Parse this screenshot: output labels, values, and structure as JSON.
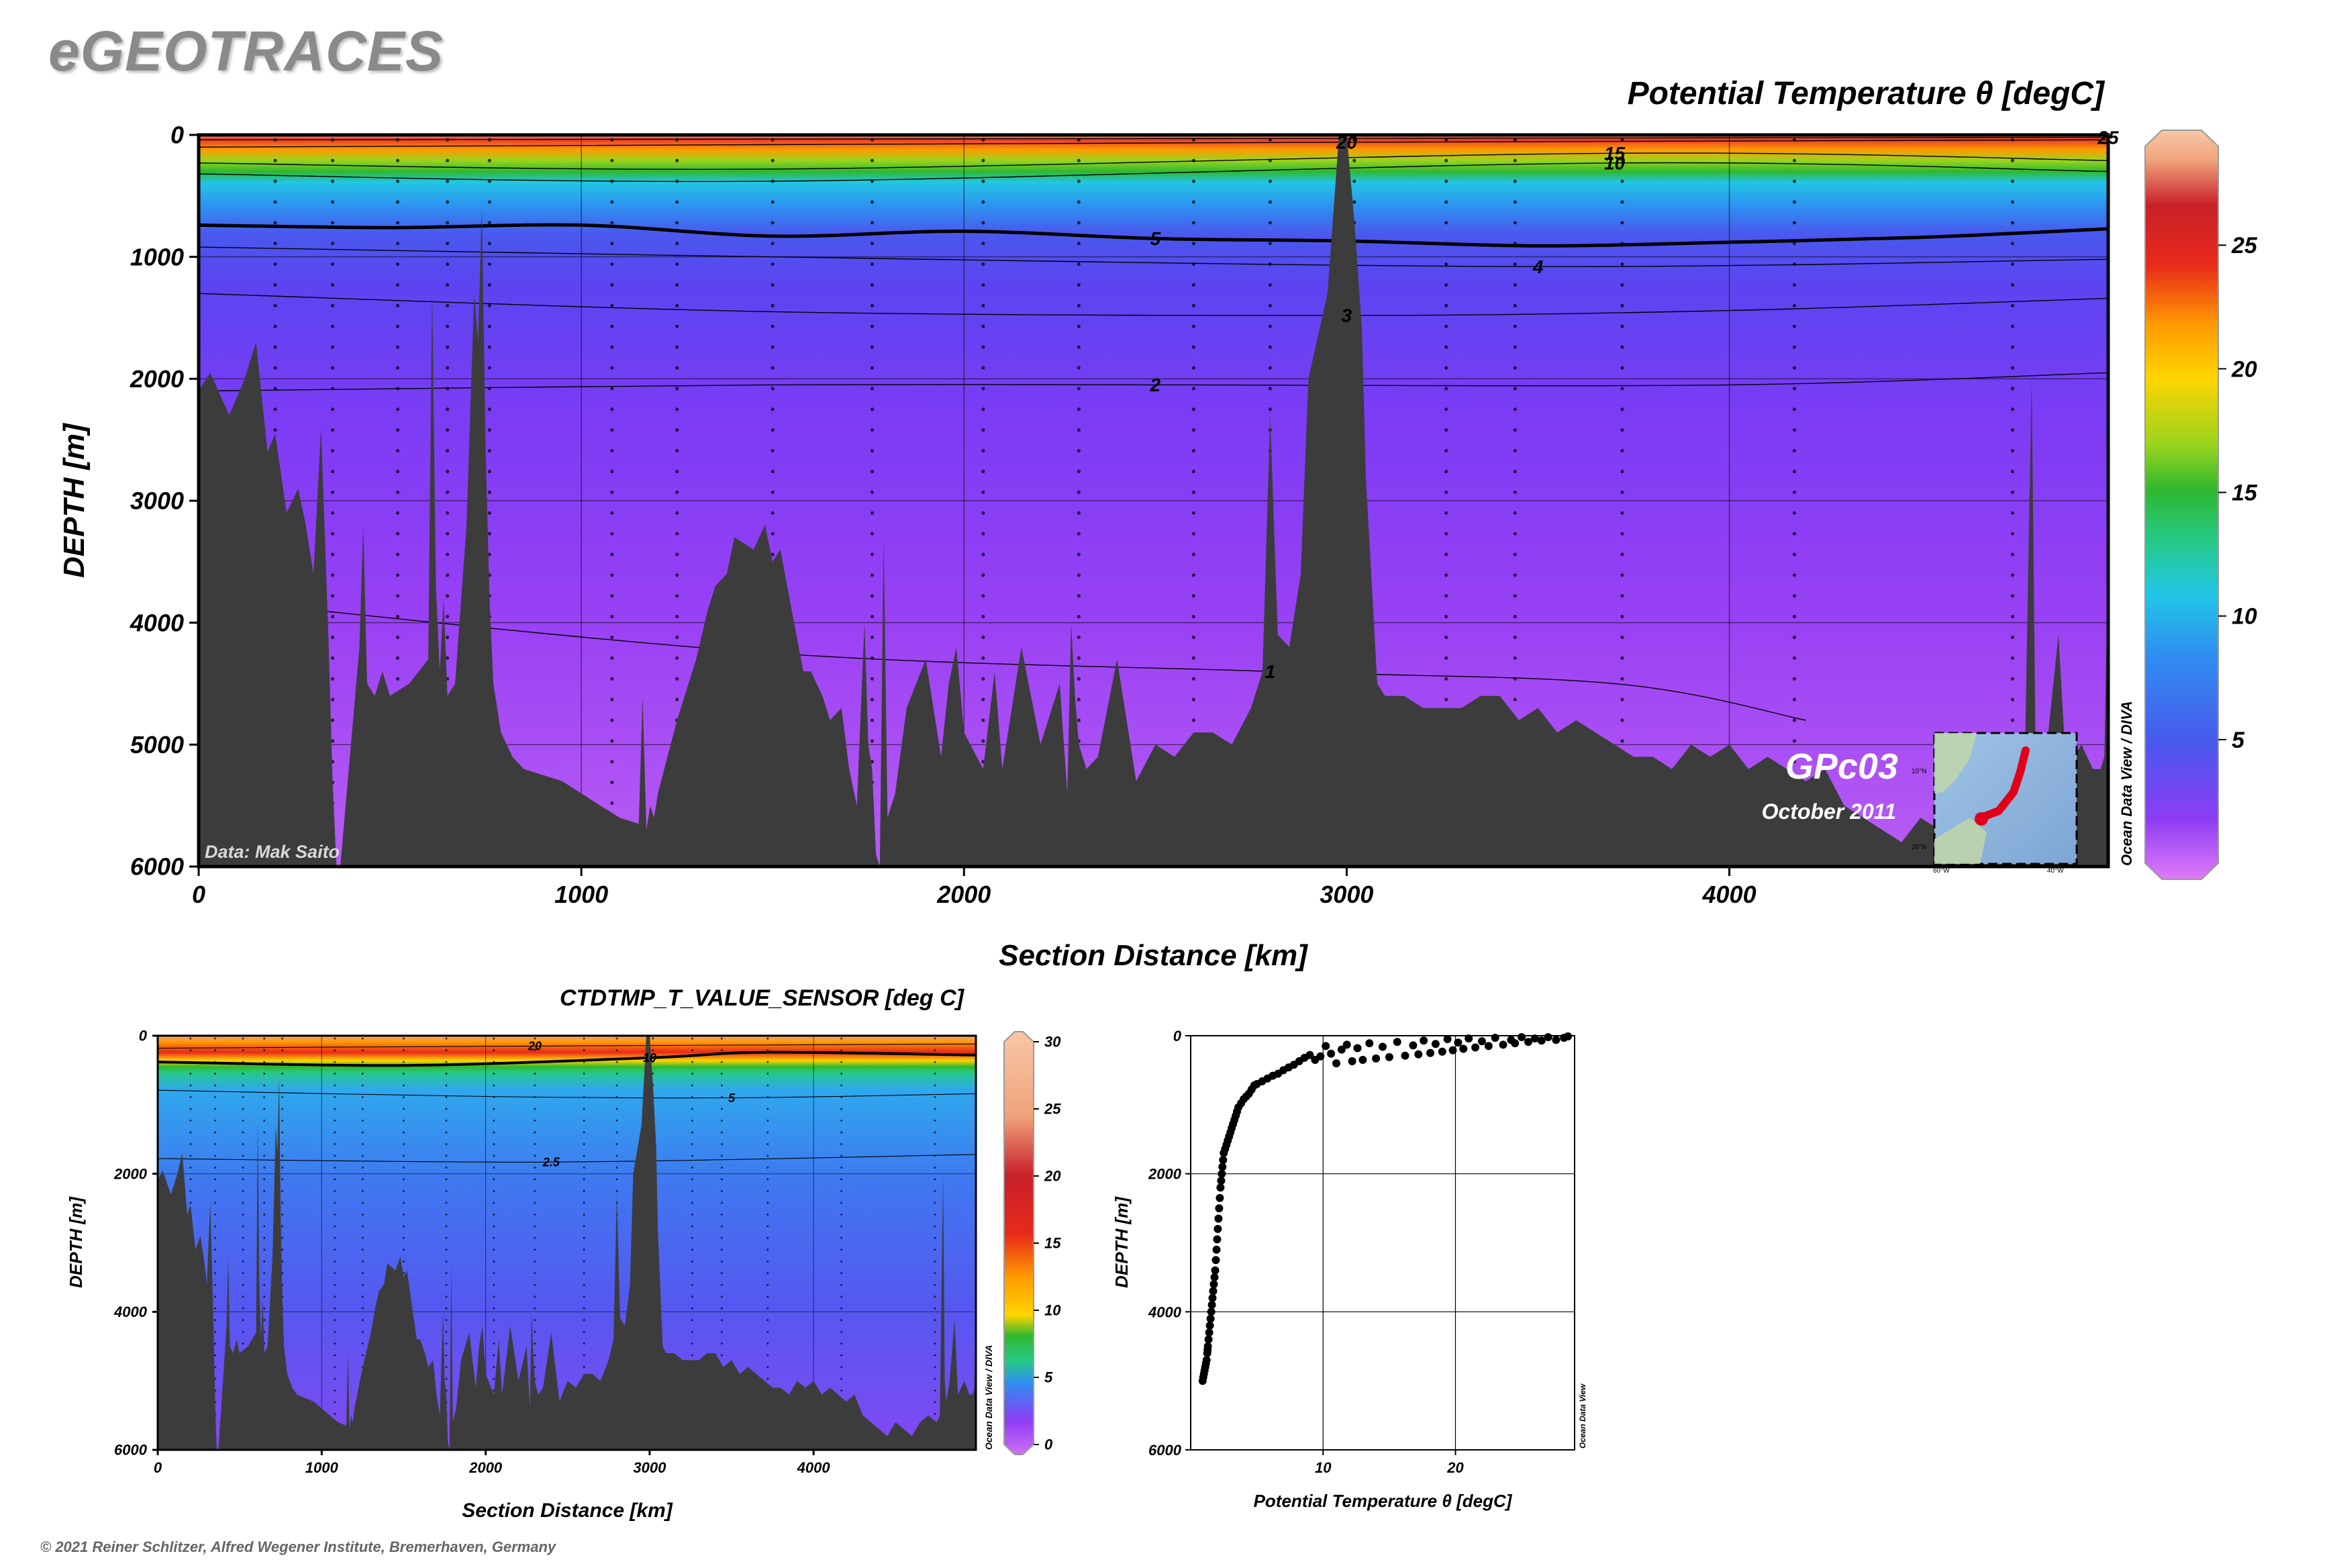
{
  "brand": "eGEOTRACES",
  "copyright": "© 2021 Reiner Schlitzer, Alfred Wegener Institute, Bremerhaven, Germany",
  "colors": {
    "bathymetry": "#3c3c3c",
    "palette": [
      "#d070f4",
      "#8d3cf5",
      "#5548f0",
      "#2f8ef0",
      "#22c6e6",
      "#26c98a",
      "#2fb82f",
      "#9ad41e",
      "#ffd400",
      "#ff9a00",
      "#e82a1a",
      "#c8202a",
      "#f0a37c",
      "#f8c7a6"
    ]
  },
  "main_section": {
    "title": "Potential Temperature θ [degC]",
    "xlabel": "Section Distance [km]",
    "ylabel": "DEPTH [m]",
    "x_ticks": [
      "0",
      "1000",
      "2000",
      "3000",
      "4000"
    ],
    "y_ticks": [
      "0",
      "1000",
      "2000",
      "3000",
      "4000",
      "5000",
      "6000"
    ],
    "credit": "Data: Mak Saito",
    "section_name": "GPc03",
    "date": "October 2011",
    "software": "Ocean Data View / DIVA",
    "colorbar_ticks": [
      "5",
      "10",
      "15",
      "20",
      "25"
    ],
    "contour_labels": [
      "25",
      "20",
      "15",
      "10",
      "5",
      "4",
      "3",
      "2",
      "1"
    ]
  },
  "inset_map": {
    "lat_labels": [
      "10°N",
      "20°N"
    ],
    "lon_labels": [
      "60°W",
      "40°W"
    ]
  },
  "sensor_section": {
    "title": "CTDTMP_T_VALUE_SENSOR [deg C]",
    "xlabel": "Section Distance [km]",
    "ylabel": "DEPTH [m]",
    "x_ticks": [
      "0",
      "1000",
      "2000",
      "3000",
      "4000"
    ],
    "y_ticks": [
      "0",
      "2000",
      "4000",
      "6000"
    ],
    "software": "Ocean Data View / DIVA",
    "colorbar_ticks": [
      "0",
      "5",
      "10",
      "15",
      "20",
      "25",
      "30"
    ],
    "contour_labels": [
      "20",
      "10",
      "5",
      "2.5"
    ]
  },
  "chart_data": [
    {
      "type": "heatmap",
      "title": "Potential Temperature θ [degC]",
      "xlabel": "Section Distance [km]",
      "ylabel": "DEPTH [m]",
      "xlim": [
        0,
        4990
      ],
      "ylim": [
        6000,
        0
      ],
      "colorbar_range": [
        0,
        29
      ],
      "contours": [
        {
          "level": 25,
          "depths": [
            [
              0,
              40
            ],
            [
              4990,
              20
            ]
          ]
        },
        {
          "level": 20,
          "depths": [
            [
              0,
              100
            ],
            [
              3000,
              60
            ],
            [
              4990,
              40
            ]
          ]
        },
        {
          "level": 15,
          "depths": [
            [
              0,
              230
            ],
            [
              1500,
              280
            ],
            [
              3700,
              150
            ],
            [
              4990,
              210
            ]
          ]
        },
        {
          "level": 10,
          "depths": [
            [
              0,
              320
            ],
            [
              1500,
              380
            ],
            [
              3700,
              230
            ],
            [
              4990,
              300
            ]
          ]
        },
        {
          "level": 5,
          "depths": [
            [
              0,
              740
            ],
            [
              500,
              760
            ],
            [
              1000,
              740
            ],
            [
              1500,
              830
            ],
            [
              2000,
              790
            ],
            [
              2500,
              850
            ],
            [
              3000,
              870
            ],
            [
              3500,
              910
            ],
            [
              4000,
              880
            ],
            [
              4500,
              840
            ],
            [
              4990,
              770
            ]
          ]
        },
        {
          "level": 4,
          "depths": [
            [
              0,
              920
            ],
            [
              1500,
              1000
            ],
            [
              3500,
              1080
            ],
            [
              4990,
              1020
            ]
          ]
        },
        {
          "level": 3,
          "depths": [
            [
              0,
              1300
            ],
            [
              1500,
              1450
            ],
            [
              3000,
              1480
            ],
            [
              4000,
              1440
            ],
            [
              4990,
              1340
            ]
          ]
        },
        {
          "level": 2,
          "depths": [
            [
              0,
              2100
            ],
            [
              1500,
              2050
            ],
            [
              2500,
              2050
            ],
            [
              4000,
              2050
            ],
            [
              4990,
              1950
            ]
          ]
        },
        {
          "level": 1,
          "depths": [
            [
              0,
              3800
            ],
            [
              1500,
              4250
            ],
            [
              2800,
              4400
            ],
            [
              3700,
              4500
            ],
            [
              4200,
              4800
            ]
          ]
        }
      ],
      "bathymetry": {
        "x": [
          0,
          30,
          80,
          120,
          150,
          180,
          200,
          230,
          260,
          280,
          300,
          320,
          340,
          350,
          360,
          370,
          420,
          430,
          440,
          460,
          480,
          500,
          550,
          600,
          610,
          620,
          630,
          640,
          650,
          670,
          700,
          720,
          730,
          740,
          750,
          760,
          770,
          790,
          820,
          850,
          900,
          950,
          1000,
          1050,
          1100,
          1150,
          1160,
          1170,
          1180,
          1190,
          1200,
          1250,
          1300,
          1330,
          1350,
          1380,
          1400,
          1450,
          1480,
          1500,
          1520,
          1550,
          1580,
          1600,
          1630,
          1650,
          1680,
          1700,
          1720,
          1740,
          1750,
          1760,
          1770,
          1780,
          1790,
          1800,
          1820,
          1850,
          1900,
          1940,
          1960,
          1980,
          2000,
          2050,
          2080,
          2100,
          2150,
          2200,
          2250,
          2270,
          2280,
          2290,
          2300,
          2320,
          2350,
          2400,
          2450,
          2500,
          2550,
          2600,
          2650,
          2700,
          2750,
          2780,
          2800,
          2820,
          2850,
          2880,
          2900,
          2950,
          2980,
          3000,
          3020,
          3040,
          3050,
          3080,
          3100,
          3150,
          3200,
          3250,
          3300,
          3350,
          3400,
          3450,
          3500,
          3550,
          3600,
          3650,
          3700,
          3750,
          3800,
          3850,
          3900,
          3950,
          4000,
          4050,
          4100,
          4150,
          4200,
          4250,
          4300,
          4350,
          4400,
          4450,
          4500,
          4550,
          4600,
          4650,
          4700,
          4750,
          4770,
          4790,
          4800,
          4810,
          4830,
          4860,
          4880,
          4900,
          4920,
          4950,
          4970,
          4980,
          4990
        ],
        "depth": [
          2100,
          1950,
          2300,
          2000,
          1700,
          2600,
          2450,
          3100,
          2900,
          3200,
          3600,
          2400,
          4200,
          5300,
          6000,
          6000,
          4200,
          3200,
          4500,
          4600,
          4400,
          4600,
          4500,
          4300,
          1250,
          3700,
          4400,
          3800,
          4600,
          4500,
          3200,
          1300,
          1700,
          600,
          2600,
          3800,
          4500,
          4900,
          5100,
          5200,
          5250,
          5300,
          5400,
          5500,
          5600,
          5650,
          4600,
          5700,
          5500,
          5600,
          5400,
          4800,
          4300,
          3900,
          3700,
          3600,
          3300,
          3400,
          3200,
          3500,
          3400,
          3900,
          4400,
          4400,
          4600,
          4800,
          4700,
          5200,
          5500,
          4000,
          5000,
          5200,
          5900,
          6000,
          3300,
          5600,
          5400,
          4700,
          4300,
          5100,
          4500,
          4200,
          4900,
          5200,
          4400,
          5200,
          4200,
          5000,
          4500,
          5400,
          4000,
          4600,
          5000,
          5200,
          5100,
          4300,
          5300,
          5000,
          5100,
          4900,
          4900,
          5000,
          4700,
          4400,
          2300,
          4100,
          4200,
          3600,
          2000,
          1300,
          0,
          0,
          700,
          1600,
          2800,
          4500,
          4600,
          4600,
          4700,
          4700,
          4700,
          4600,
          4600,
          4800,
          4700,
          4900,
          4800,
          4900,
          5000,
          5100,
          5100,
          5200,
          5000,
          5100,
          5000,
          5200,
          5100,
          5200,
          5300,
          5200,
          5500,
          5600,
          5700,
          5800,
          5600,
          5700,
          5800,
          5600,
          5500,
          5600,
          5500,
          2000,
          5000,
          5300,
          5000,
          4100,
          5200,
          5100,
          5000,
          5200,
          5200,
          5100,
          3400,
          2000
        ]
      }
    },
    {
      "type": "heatmap",
      "title": "CTDTMP_T_VALUE_SENSOR [deg C]",
      "xlabel": "Section Distance [km]",
      "ylabel": "DEPTH [m]",
      "xlim": [
        0,
        4990
      ],
      "ylim": [
        6000,
        0
      ],
      "colorbar_range": [
        0,
        30
      ],
      "contours": [
        {
          "level": 20,
          "depths": [
            [
              0,
              180
            ],
            [
              2300,
              150
            ],
            [
              4990,
              120
            ]
          ]
        },
        {
          "level": 10,
          "depths": [
            [
              0,
              380
            ],
            [
              1500,
              430
            ],
            [
              3000,
              320
            ],
            [
              3700,
              240
            ],
            [
              4990,
              280
            ]
          ]
        },
        {
          "level": 5,
          "depths": [
            [
              0,
              790
            ],
            [
              2000,
              880
            ],
            [
              3500,
              900
            ],
            [
              4990,
              840
            ]
          ]
        },
        {
          "level": 2.5,
          "depths": [
            [
              0,
              1780
            ],
            [
              2400,
              1830
            ],
            [
              4990,
              1720
            ]
          ]
        }
      ]
    },
    {
      "type": "scatter",
      "xlabel": "Potential Temperature θ [degC]",
      "ylabel": "DEPTH [m]",
      "xlim": [
        0,
        29
      ],
      "ylim": [
        6000,
        0
      ],
      "x_ticks": [
        "10",
        "20"
      ],
      "y_ticks": [
        "0",
        "2000",
        "4000",
        "6000"
      ],
      "software": "Ocean Data View",
      "series": [
        {
          "x": [
            28.5,
            28.2,
            27.6,
            27.0,
            26.5,
            26.0,
            25.5,
            25.0,
            24.5,
            24.2,
            23.6,
            23.0,
            22.5,
            22.0,
            21.5,
            21.0,
            20.6,
            20.2,
            19.8,
            19.4,
            19.0,
            18.5,
            18.1,
            17.6,
            17.2,
            16.8,
            16.2,
            15.6,
            15.0,
            14.5,
            14.0,
            13.5,
            13.0,
            12.6,
            12.2,
            11.8,
            11.4,
            11.0,
            10.6,
            10.2,
            9.8,
            9.4,
            9.0,
            8.6,
            8.2,
            7.8,
            7.4,
            7.0,
            6.6,
            6.2,
            5.8,
            5.4,
            5.0,
            4.8,
            4.6,
            4.4,
            4.2,
            4.0,
            3.8,
            3.6,
            3.5,
            3.4,
            3.3,
            3.2,
            3.1,
            3.0,
            2.9,
            2.8,
            2.7,
            2.6,
            2.5,
            2.45,
            2.4,
            2.35,
            2.3,
            2.25,
            2.2,
            2.15,
            2.1,
            2.05,
            2.0,
            1.95,
            1.9,
            1.85,
            1.8,
            1.75,
            1.7,
            1.65,
            1.6,
            1.55,
            1.5,
            1.45,
            1.4,
            1.35,
            1.3,
            1.28,
            1.25,
            1.2,
            1.15,
            1.1,
            1.05,
            1.0,
            0.95,
            0.9
          ],
          "y": [
            10,
            30,
            60,
            20,
            70,
            40,
            90,
            20,
            110,
            60,
            130,
            30,
            150,
            80,
            170,
            40,
            190,
            100,
            210,
            50,
            230,
            120,
            250,
            70,
            270,
            140,
            290,
            90,
            310,
            160,
            330,
            110,
            350,
            180,
            370,
            130,
            200,
            400,
            260,
            150,
            300,
            350,
            280,
            320,
            370,
            420,
            460,
            500,
            550,
            580,
            620,
            660,
            700,
            720,
            780,
            840,
            880,
            920,
            980,
            1040,
            1100,
            1160,
            1220,
            1280,
            1340,
            1400,
            1460,
            1520,
            1580,
            1640,
            1700,
            1800,
            1900,
            2000,
            2100,
            2200,
            2350,
            2500,
            2650,
            2800,
            2950,
            3100,
            3250,
            3400,
            3500,
            3600,
            3700,
            3800,
            3900,
            4000,
            4100,
            4200,
            4300,
            4400,
            4500,
            4550,
            4600,
            4700,
            4750,
            4800,
            4850,
            4900,
            4950,
            5000
          ]
        }
      ]
    }
  ]
}
